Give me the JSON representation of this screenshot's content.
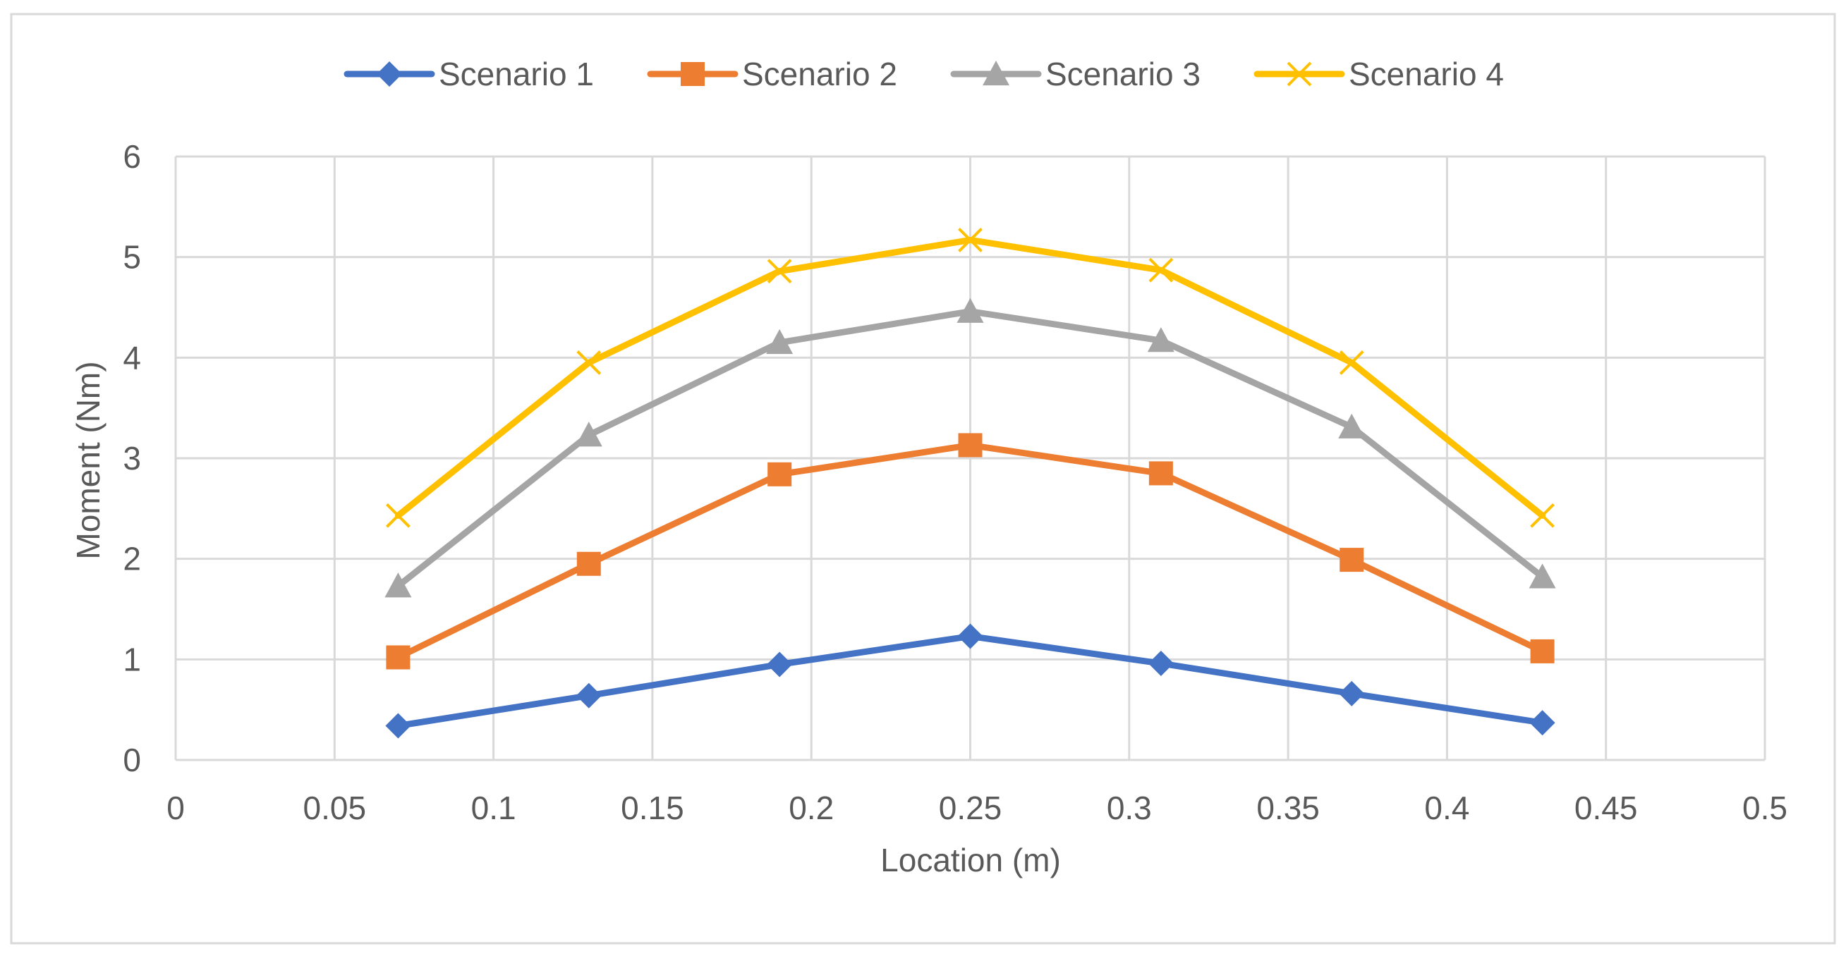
{
  "chart_data": {
    "type": "line",
    "title": "",
    "xlabel": "Location (m)",
    "ylabel": "Moment (Nm)",
    "xlim": [
      0,
      0.5
    ],
    "ylim": [
      0,
      6
    ],
    "grid": true,
    "legend": "top",
    "x_ticks": [
      {
        "value": 0,
        "label": "0"
      },
      {
        "value": 0.05,
        "label": "0.05"
      },
      {
        "value": 0.1,
        "label": "0.1"
      },
      {
        "value": 0.15,
        "label": "0.15"
      },
      {
        "value": 0.2,
        "label": "0.2"
      },
      {
        "value": 0.25,
        "label": "0.25"
      },
      {
        "value": 0.3,
        "label": "0.3"
      },
      {
        "value": 0.35,
        "label": "0.35"
      },
      {
        "value": 0.4,
        "label": "0.4"
      },
      {
        "value": 0.45,
        "label": "0.45"
      },
      {
        "value": 0.5,
        "label": "0.5"
      }
    ],
    "y_ticks": [
      {
        "value": 0,
        "label": "0"
      },
      {
        "value": 1,
        "label": "1"
      },
      {
        "value": 2,
        "label": "2"
      },
      {
        "value": 3,
        "label": "3"
      },
      {
        "value": 4,
        "label": "4"
      },
      {
        "value": 5,
        "label": "5"
      },
      {
        "value": 6,
        "label": "6"
      }
    ],
    "x": [
      0.07,
      0.13,
      0.19,
      0.25,
      0.31,
      0.37,
      0.43
    ],
    "series": [
      {
        "name": "Scenario 1",
        "color": "#4472C4",
        "marker": "diamond",
        "values": [
          0.34,
          0.64,
          0.95,
          1.23,
          0.96,
          0.66,
          0.37
        ]
      },
      {
        "name": "Scenario 2",
        "color": "#ED7D31",
        "marker": "square",
        "values": [
          1.02,
          1.95,
          2.84,
          3.13,
          2.85,
          1.99,
          1.08
        ]
      },
      {
        "name": "Scenario 3",
        "color": "#A5A5A5",
        "marker": "triangle",
        "values": [
          1.73,
          3.23,
          4.15,
          4.46,
          4.17,
          3.31,
          1.82
        ]
      },
      {
        "name": "Scenario 4",
        "color": "#FFC000",
        "marker": "x",
        "values": [
          2.43,
          3.95,
          4.86,
          5.17,
          4.87,
          3.95,
          2.43
        ]
      }
    ]
  }
}
